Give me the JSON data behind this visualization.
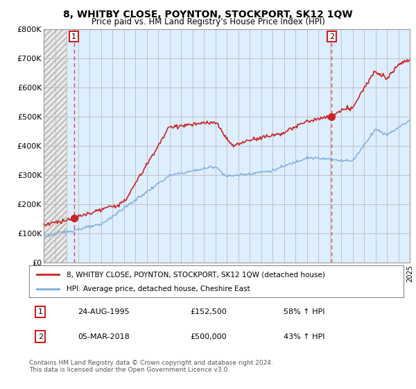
{
  "title": "8, WHITBY CLOSE, POYNTON, STOCKPORT, SK12 1QW",
  "subtitle": "Price paid vs. HM Land Registry's House Price Index (HPI)",
  "ylim": [
    0,
    800000
  ],
  "yticks": [
    0,
    100000,
    200000,
    300000,
    400000,
    500000,
    600000,
    700000,
    800000
  ],
  "ytick_labels": [
    "£0",
    "£100K",
    "£200K",
    "£300K",
    "£400K",
    "£500K",
    "£600K",
    "£700K",
    "£800K"
  ],
  "xlim_start": 1993,
  "xlim_end": 2025,
  "sale1_year": 1995.65,
  "sale1_price": 152500,
  "sale2_year": 2018.17,
  "sale2_price": 500000,
  "legend_line1": "8, WHITBY CLOSE, POYNTON, STOCKPORT, SK12 1QW (detached house)",
  "legend_line2": "HPI: Average price, detached house, Cheshire East",
  "annotation1_date": "24-AUG-1995",
  "annotation1_price": "£152,500",
  "annotation1_hpi": "58% ↑ HPI",
  "annotation2_date": "05-MAR-2018",
  "annotation2_price": "£500,000",
  "annotation2_hpi": "43% ↑ HPI",
  "footer": "Contains HM Land Registry data © Crown copyright and database right 2024.\nThis data is licensed under the Open Government Licence v3.0.",
  "hpi_color": "#7aaadd",
  "price_color": "#cc2222",
  "hatch_color": "#cccccc",
  "bg_right_color": "#ddeeff",
  "grid_color": "#bbbbbb",
  "sale_marker_color": "#cc2222",
  "vline_color": "#dd4444"
}
